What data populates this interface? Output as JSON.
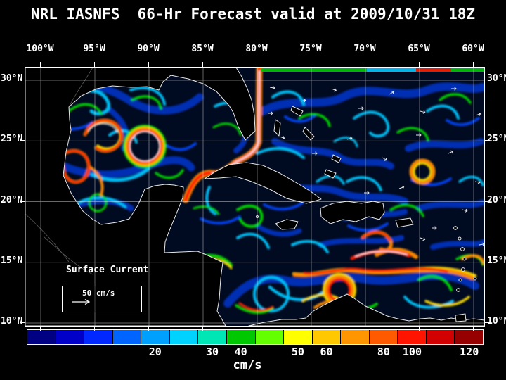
{
  "title": "NRL IASNFS  66-Hr Forecast valid at 2009/10/31 18Z",
  "axes": {
    "top_longitude_labels": [
      "100°W",
      "95°W",
      "90°W",
      "85°W",
      "80°W",
      "75°W",
      "70°W",
      "65°W",
      "60°W"
    ],
    "left_latitude_labels": [
      "30°N",
      "25°N",
      "20°N",
      "15°N",
      "10°N"
    ],
    "right_latitude_labels": [
      "30°N",
      "25°N",
      "20°N",
      "15°N",
      "10°N"
    ]
  },
  "map_overlay": {
    "field_label": "Surface Current",
    "scale_label": "50 cm/s"
  },
  "colorbar": {
    "unit": "cm/s",
    "tick_labels": [
      {
        "text": "20",
        "segment": 5
      },
      {
        "text": "30",
        "segment": 7
      },
      {
        "text": "40",
        "segment": 8
      },
      {
        "text": "50",
        "segment": 10
      },
      {
        "text": "60",
        "segment": 11
      },
      {
        "text": "80",
        "segment": 13
      },
      {
        "text": "100",
        "segment": 14
      },
      {
        "text": "120",
        "segment": 16
      }
    ],
    "segment_colors": [
      "#000082",
      "#0000c8",
      "#0028ff",
      "#0064ff",
      "#00a0ff",
      "#00d2ff",
      "#00e6b4",
      "#00c800",
      "#64ff00",
      "#ffff00",
      "#ffc800",
      "#ff9600",
      "#ff5a00",
      "#ff1400",
      "#d20000",
      "#960000"
    ]
  },
  "colors": {
    "background": "#000000",
    "ocean": "#000a20",
    "text": "#ffffff",
    "grid": "#ffffff",
    "coastline": "#e8e8e8"
  }
}
